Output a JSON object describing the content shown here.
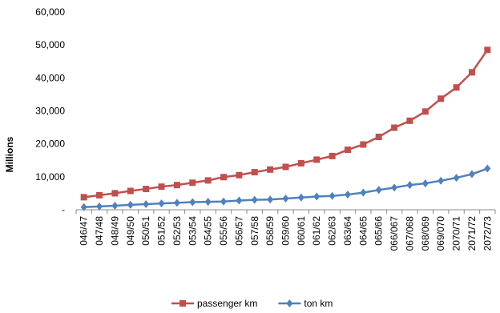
{
  "chart_data": {
    "type": "line",
    "title": "",
    "xlabel": "",
    "ylabel": "Millions",
    "ylim": [
      0,
      60000
    ],
    "yticks": [
      "-",
      "10,000",
      "20,000",
      "30,000",
      "40,000",
      "50,000",
      "60,000"
    ],
    "grid": false,
    "legend": "bottom",
    "categories": [
      "046/47",
      "047/48",
      "048/49",
      "049/50",
      "050/51",
      "051/52",
      "052/53",
      "053/54",
      "054/55",
      "055/56",
      "056/57",
      "057/58",
      "058/59",
      "059/60",
      "060/61",
      "061/62",
      "062/63",
      "063/64",
      "064/65",
      "065/66",
      "066/067",
      "067/068",
      "068/069",
      "069/070",
      "2070/71",
      "2071/72",
      "2072/73"
    ],
    "series": [
      {
        "name": "passenger km",
        "color": "#c0504d",
        "marker": "square",
        "values": [
          3800,
          4400,
          5000,
          5700,
          6300,
          7000,
          7500,
          8200,
          8900,
          9900,
          10500,
          11400,
          12200,
          13000,
          14100,
          15200,
          16300,
          18200,
          19800,
          22100,
          24900,
          27000,
          29800,
          33700,
          37100,
          41700,
          48500
        ]
      },
      {
        "name": "ton km",
        "color": "#4f81bd",
        "marker": "diamond",
        "values": [
          800,
          1000,
          1200,
          1500,
          1700,
          1900,
          2100,
          2300,
          2400,
          2500,
          2800,
          3000,
          3100,
          3400,
          3700,
          4000,
          4200,
          4600,
          5200,
          6000,
          6700,
          7500,
          8000,
          8800,
          9700,
          10800,
          12500
        ]
      }
    ]
  }
}
